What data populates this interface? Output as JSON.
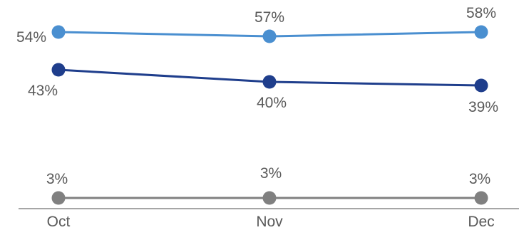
{
  "chart_data": {
    "type": "line",
    "title": "",
    "xlabel": "",
    "ylabel": "",
    "categories": [
      "Oct",
      "Nov",
      "Dec"
    ],
    "ylim": [
      0,
      70
    ],
    "grid": false,
    "legend": "none",
    "series": [
      {
        "values": [
          54,
          57,
          58
        ],
        "labels": [
          "54%",
          "57%",
          "58%"
        ],
        "color": "#4a8fd0"
      },
      {
        "values": [
          43,
          40,
          39
        ],
        "labels": [
          "43%",
          "40%",
          "39%"
        ],
        "color": "#1f3e8c"
      },
      {
        "values": [
          3,
          3,
          3
        ],
        "labels": [
          "3%",
          "3%",
          "3%"
        ],
        "color": "#808080"
      }
    ],
    "axis_color": "#a6a6a6"
  }
}
